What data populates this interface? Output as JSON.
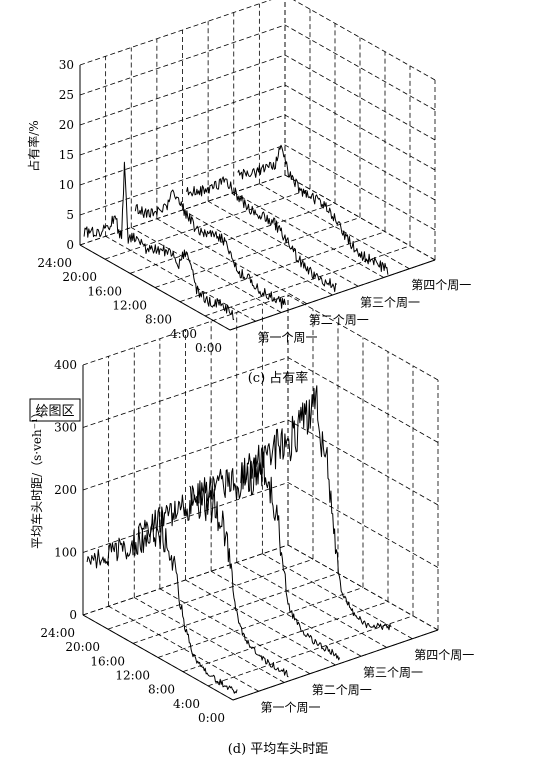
{
  "chart_data": [
    {
      "type": "line",
      "view": "3d-waterfall",
      "caption": "(c) 占有率",
      "ylabel": "占有率/%",
      "zlim": [
        0,
        30
      ],
      "z_ticks": [
        "0",
        "5",
        "10",
        "15",
        "20",
        "25",
        "30"
      ],
      "time_ticks": [
        "0:00",
        "4:00",
        "8:00",
        "12:00",
        "16:00",
        "20:00",
        "24:00"
      ],
      "weeks": [
        "第一个周一",
        "第二个周一",
        "第三个周一",
        "第四个周一"
      ],
      "grid": true,
      "legend": "none",
      "series": [
        {
          "name": "第一个周一",
          "x": [
            0,
            2,
            4,
            6,
            7,
            8,
            9,
            10,
            12,
            14,
            16,
            17,
            17.5,
            18,
            18.5,
            19,
            20,
            22,
            24
          ],
          "y": [
            2,
            3,
            2,
            3,
            7,
            8,
            5,
            7,
            6,
            5,
            6,
            5,
            18,
            5,
            5,
            8,
            5,
            3,
            2
          ]
        },
        {
          "name": "第二个周一",
          "x": [
            0,
            2,
            4,
            6,
            7,
            8,
            9,
            10,
            12,
            14,
            16,
            17,
            18,
            19,
            20,
            22,
            24
          ],
          "y": [
            1,
            1,
            1,
            2,
            2,
            3,
            5,
            6,
            6,
            5,
            7,
            8,
            9,
            6,
            5,
            3,
            3
          ]
        },
        {
          "name": "第三个周一",
          "x": [
            0,
            2,
            4,
            6,
            7,
            8,
            9,
            10,
            12,
            14,
            16,
            17,
            18,
            19,
            20,
            22,
            24
          ],
          "y": [
            1,
            1,
            1,
            2,
            3,
            4,
            5,
            6,
            6,
            6,
            7,
            8,
            8,
            7,
            6,
            4,
            3
          ]
        },
        {
          "name": "第四个周一",
          "x": [
            0,
            2,
            4,
            6,
            7,
            8,
            9,
            10,
            12,
            14,
            15,
            16,
            17,
            18,
            19,
            20,
            22,
            24
          ],
          "y": [
            1,
            1,
            1,
            2,
            3,
            4,
            5,
            6,
            6,
            6,
            7,
            8,
            12,
            8,
            7,
            6,
            4,
            3
          ]
        }
      ]
    },
    {
      "type": "line",
      "view": "3d-waterfall",
      "caption": "(d) 平均车头时距",
      "ylabel": "平均车头时距/（s·veh⁻¹）",
      "plot_area_label": "绘图区",
      "zlim": [
        0,
        400
      ],
      "z_ticks": [
        "0",
        "100",
        "200",
        "300",
        "400"
      ],
      "time_ticks": [
        "0:00",
        "4:00",
        "8:00",
        "12:00",
        "16:00",
        "20:00",
        "24:00"
      ],
      "weeks": [
        "第一个周一",
        "第二个周一",
        "第三个周一",
        "第四个周一"
      ],
      "grid": true,
      "legend": "none",
      "series": [
        {
          "name": "第一个周一",
          "x": [
            0,
            4,
            5,
            6,
            7,
            8,
            9,
            10,
            12,
            16,
            20,
            24
          ],
          "y": [
            10,
            12,
            15,
            20,
            30,
            60,
            95,
            150,
            200,
            160,
            120,
            80
          ]
        },
        {
          "name": "第二个周一",
          "x": [
            0,
            4,
            5,
            6,
            7,
            8,
            9,
            10,
            12,
            16,
            20,
            24
          ],
          "y": [
            10,
            12,
            15,
            20,
            30,
            50,
            110,
            180,
            220,
            190,
            150,
            100
          ]
        },
        {
          "name": "第三个周一",
          "x": [
            0,
            4,
            5,
            6,
            7,
            8,
            9,
            10,
            12,
            16,
            20,
            24
          ],
          "y": [
            10,
            12,
            15,
            20,
            30,
            40,
            100,
            180,
            240,
            200,
            170,
            130
          ]
        },
        {
          "name": "第四个周一",
          "x": [
            0,
            4,
            5,
            6,
            7,
            8,
            9,
            10,
            12,
            16,
            20,
            24
          ],
          "y": [
            30,
            12,
            15,
            20,
            30,
            45,
            120,
            230,
            310,
            240,
            190,
            140
          ]
        }
      ]
    }
  ]
}
